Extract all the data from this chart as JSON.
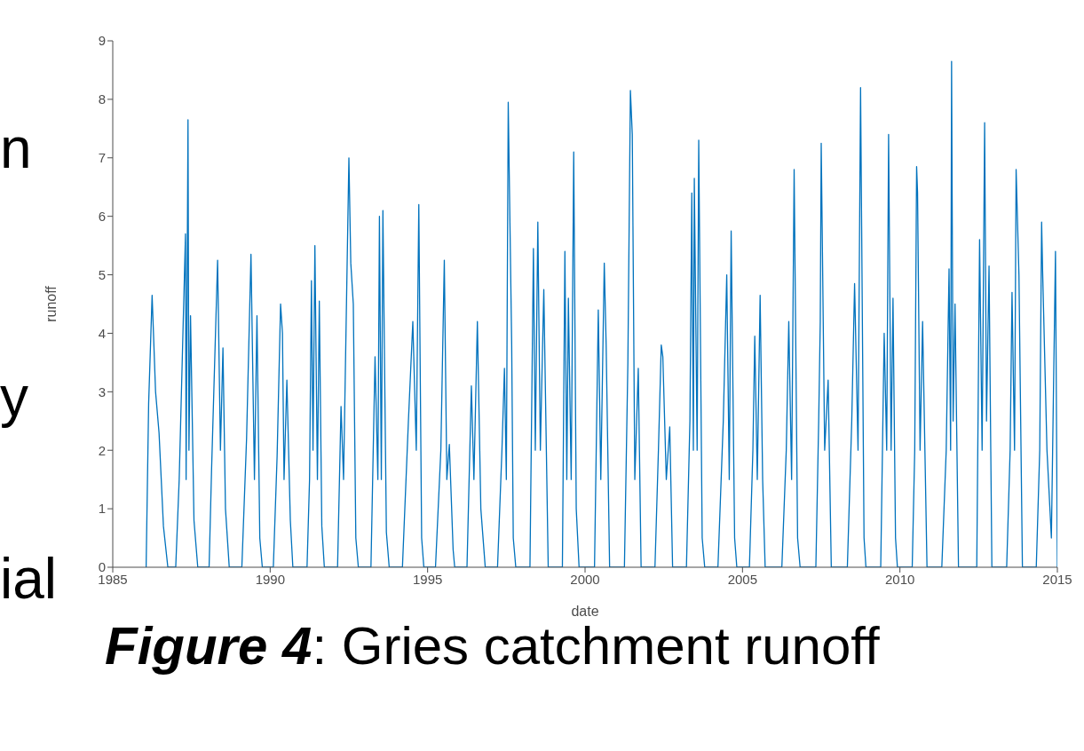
{
  "chart_data": {
    "type": "line",
    "xlabel": "date",
    "ylabel": "runoff",
    "annotations": [
      "Figure 4: Gries catchment runoff",
      "n",
      "y",
      "ial"
    ],
    "xlim": [
      1985,
      2015
    ],
    "xticks": [
      1985,
      1990,
      1995,
      2000,
      2005,
      2010,
      2015
    ],
    "ylim": [
      0,
      9
    ],
    "yticks": [
      0,
      1,
      2,
      3,
      4,
      5,
      6,
      7,
      8,
      9
    ],
    "grid": false,
    "marker": "none",
    "line_style": "solid",
    "series": [
      {
        "color": "#0072bd",
        "x": [
          1986.06,
          1986.14,
          1986.25,
          1986.36,
          1986.47,
          1986.61,
          1986.75,
          1987.0,
          1987.11,
          1987.31,
          1987.33,
          1987.39,
          1987.42,
          1987.47,
          1987.58,
          1987.7,
          1988.06,
          1988.14,
          1988.33,
          1988.42,
          1988.5,
          1988.58,
          1988.7,
          1989.1,
          1989.25,
          1989.39,
          1989.5,
          1989.58,
          1989.67,
          1989.75,
          1990.1,
          1990.22,
          1990.33,
          1990.39,
          1990.44,
          1990.53,
          1990.64,
          1990.72,
          1991.17,
          1991.25,
          1991.31,
          1991.36,
          1991.42,
          1991.5,
          1991.56,
          1991.64,
          1991.72,
          1992.14,
          1992.25,
          1992.33,
          1992.5,
          1992.56,
          1992.64,
          1992.72,
          1992.8,
          1993.2,
          1993.33,
          1993.42,
          1993.47,
          1993.53,
          1993.58,
          1993.69,
          1993.78,
          1994.2,
          1994.39,
          1994.53,
          1994.64,
          1994.72,
          1994.81,
          1994.88,
          1995.25,
          1995.42,
          1995.53,
          1995.61,
          1995.69,
          1995.81,
          1995.86,
          1996.25,
          1996.39,
          1996.47,
          1996.58,
          1996.69,
          1996.83,
          1997.22,
          1997.36,
          1997.44,
          1997.5,
          1997.56,
          1997.67,
          1997.72,
          1997.8,
          1998.25,
          1998.36,
          1998.42,
          1998.5,
          1998.58,
          1998.69,
          1998.83,
          1999.28,
          1999.36,
          1999.42,
          1999.47,
          1999.56,
          1999.64,
          1999.72,
          1999.81,
          2000.3,
          2000.42,
          2000.5,
          2000.61,
          2000.67,
          2000.78,
          2001.25,
          2001.36,
          2001.44,
          2001.5,
          2001.58,
          2001.69,
          2001.78,
          2002.22,
          2002.33,
          2002.42,
          2002.47,
          2002.58,
          2002.69,
          2002.78,
          2003.22,
          2003.33,
          2003.39,
          2003.44,
          2003.47,
          2003.56,
          2003.61,
          2003.72,
          2003.8,
          2004.22,
          2004.39,
          2004.5,
          2004.58,
          2004.64,
          2004.75,
          2004.82,
          2005.22,
          2005.33,
          2005.39,
          2005.47,
          2005.56,
          2005.64,
          2005.72,
          2006.25,
          2006.39,
          2006.47,
          2006.56,
          2006.64,
          2006.75,
          2006.83,
          2007.33,
          2007.42,
          2007.47,
          2007.5,
          2007.61,
          2007.72,
          2007.82,
          2008.33,
          2008.47,
          2008.56,
          2008.67,
          2008.75,
          2008.86,
          2008.92,
          2009.39,
          2009.5,
          2009.58,
          2009.64,
          2009.72,
          2009.78,
          2009.86,
          2009.92,
          2010.39,
          2010.47,
          2010.53,
          2010.56,
          2010.64,
          2010.72,
          2010.86,
          2011.33,
          2011.47,
          2011.56,
          2011.61,
          2011.64,
          2011.69,
          2011.75,
          2011.86,
          2012.44,
          2012.53,
          2012.61,
          2012.69,
          2012.75,
          2012.83,
          2012.92,
          2013.39,
          2013.5,
          2013.56,
          2013.64,
          2013.69,
          2013.78,
          2013.89,
          2014.33,
          2014.44,
          2014.5,
          2014.53,
          2014.67,
          2014.81,
          2014.94,
          2015.0
        ],
        "values": [
          0,
          2.8,
          4.65,
          3.0,
          2.3,
          0.7,
          0,
          0,
          1.5,
          5.7,
          1.5,
          7.65,
          2.0,
          4.3,
          0.8,
          0,
          0,
          1.7,
          5.25,
          2.0,
          3.75,
          1.0,
          0,
          0,
          2.2,
          5.35,
          1.5,
          4.3,
          0.5,
          0,
          0,
          1.9,
          4.5,
          4.0,
          1.5,
          3.2,
          0.8,
          0,
          0,
          1.5,
          4.9,
          2.0,
          5.5,
          1.5,
          4.55,
          0.7,
          0,
          0,
          2.75,
          1.5,
          7.0,
          5.2,
          4.5,
          0.5,
          0,
          0,
          3.6,
          1.5,
          6.0,
          1.5,
          6.1,
          0.6,
          0,
          0,
          2.5,
          4.2,
          2.0,
          6.2,
          0.5,
          0,
          0,
          2.0,
          5.25,
          1.5,
          2.1,
          0.3,
          0,
          0,
          3.1,
          1.5,
          4.2,
          1.0,
          0,
          0,
          2.0,
          3.4,
          1.5,
          7.95,
          3.8,
          0.5,
          0,
          0,
          5.45,
          2.0,
          5.9,
          2.0,
          4.75,
          0,
          0,
          5.4,
          1.5,
          4.6,
          1.5,
          7.1,
          1.0,
          0,
          0,
          4.4,
          1.5,
          5.2,
          3.8,
          0,
          0,
          3.5,
          8.15,
          7.4,
          1.5,
          3.4,
          0,
          0,
          2.0,
          3.8,
          3.6,
          1.5,
          2.4,
          0,
          0,
          2.5,
          6.4,
          2.0,
          6.65,
          2.0,
          7.3,
          0.5,
          0,
          0,
          2.5,
          5.0,
          1.5,
          5.75,
          0.5,
          0,
          0,
          2.0,
          3.95,
          1.5,
          4.65,
          1.5,
          0,
          0,
          2.0,
          4.2,
          1.5,
          6.8,
          0.5,
          0,
          0,
          2.5,
          4.2,
          7.25,
          2.0,
          3.2,
          0,
          0,
          2.5,
          4.85,
          2.0,
          8.2,
          0.5,
          0,
          0,
          4.0,
          2.0,
          7.4,
          2.0,
          4.6,
          0.5,
          0,
          0,
          2.0,
          6.85,
          6.4,
          2.0,
          4.2,
          0,
          0,
          2.0,
          5.1,
          2.0,
          8.65,
          2.5,
          4.5,
          0,
          0,
          5.6,
          2.0,
          7.6,
          2.5,
          5.15,
          0,
          0,
          2.0,
          4.7,
          2.0,
          6.8,
          5.0,
          0,
          0,
          2.0,
          5.9,
          5.1,
          2.0,
          0.5,
          5.4,
          0
        ]
      }
    ]
  }
}
